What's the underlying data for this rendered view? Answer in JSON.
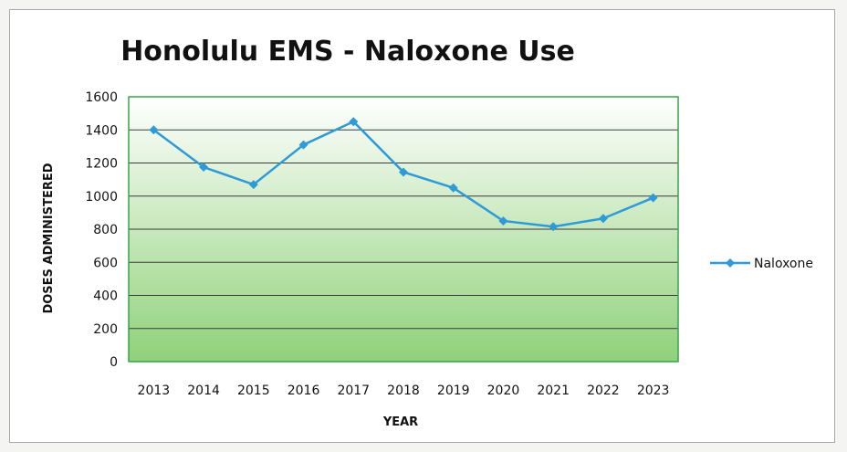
{
  "chart_data": {
    "type": "line",
    "title": "Honolulu EMS - Naloxone Use",
    "xlabel": "YEAR",
    "ylabel": "DOSES ADMINISTERED",
    "categories": [
      "2013",
      "2014",
      "2015",
      "2016",
      "2017",
      "2018",
      "2019",
      "2020",
      "2021",
      "2022",
      "2023"
    ],
    "series": [
      {
        "name": "Naloxone",
        "color": "#2e9ad6",
        "values": [
          1400,
          1175,
          1070,
          1310,
          1450,
          1145,
          1050,
          850,
          815,
          865,
          990
        ]
      }
    ],
    "ylim": [
      0,
      1600
    ],
    "yticks": [
      0,
      200,
      400,
      600,
      800,
      1000,
      1200,
      1400,
      1600
    ],
    "grid": true,
    "legend_position": "right",
    "plot_background": "green-gradient"
  },
  "colors": {
    "line": "#2e9ad6",
    "plot_border": "#3aa24a",
    "gridline": "#3a3a3a",
    "gradient_top": "#ffffff",
    "gradient_bottom": "#8fd17a"
  }
}
